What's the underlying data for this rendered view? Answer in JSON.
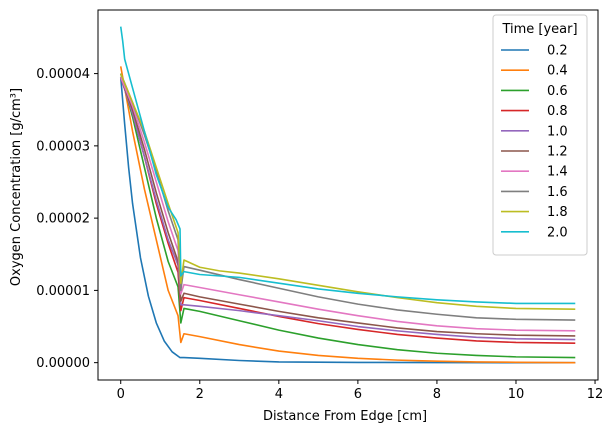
{
  "chart_data": {
    "type": "line",
    "title": "",
    "xlabel": "Distance From Edge [cm]",
    "ylabel": "Oxygen Concentration [g/cm³]",
    "xlim": [
      -0.575,
      12.075
    ],
    "ylim": [
      -2.4e-06,
      4.88e-05
    ],
    "x_ticks": [
      0,
      2,
      4,
      6,
      8,
      10,
      12
    ],
    "x_tick_labels": [
      "0",
      "2",
      "4",
      "6",
      "8",
      "10",
      "12"
    ],
    "y_ticks": [
      0,
      1e-05,
      2e-05,
      3e-05,
      4e-05
    ],
    "y_tick_labels": [
      "0.00000",
      "0.00001",
      "0.00002",
      "0.00003",
      "0.00004"
    ],
    "grid": false,
    "legend": {
      "title": "Time [year]",
      "placement": "top-right"
    },
    "series": [
      {
        "name": "0.2",
        "color": "#1f77b4",
        "x": [
          0,
          0.1,
          0.2,
          0.3,
          0.5,
          0.7,
          0.9,
          1.1,
          1.3,
          1.5,
          1.6,
          2.0,
          3.0,
          4.0,
          6.0,
          8.0,
          10.0,
          11.5
        ],
        "y": [
          3.95e-05,
          3.3e-05,
          2.7e-05,
          2.2e-05,
          1.45e-05,
          9.2e-06,
          5.5e-06,
          3e-06,
          1.5e-06,
          7e-07,
          7e-07,
          6e-07,
          3e-07,
          1e-07,
          3e-08,
          1e-08,
          0.0,
          0.0
        ]
      },
      {
        "name": "0.4",
        "color": "#ff7f0e",
        "x": [
          0,
          0.3,
          0.6,
          0.9,
          1.2,
          1.45,
          1.52,
          1.6,
          2.0,
          3.0,
          4.0,
          5.0,
          6.0,
          7.0,
          8.0,
          9.0,
          10.0,
          11.5
        ],
        "y": [
          4.1e-05,
          3.2e-05,
          2.4e-05,
          1.7e-05,
          1e-05,
          6.5e-06,
          2.8e-06,
          4e-06,
          3.6e-06,
          2.5e-06,
          1.6e-06,
          1e-06,
          6e-07,
          3.5e-07,
          2e-07,
          1e-07,
          5e-08,
          0.0
        ]
      },
      {
        "name": "0.6",
        "color": "#2ca02c",
        "x": [
          0,
          0.3,
          0.6,
          0.9,
          1.2,
          1.45,
          1.52,
          1.6,
          2.0,
          3.0,
          4.0,
          5.0,
          6.0,
          7.0,
          8.0,
          9.0,
          10.0,
          11.5
        ],
        "y": [
          4e-05,
          3.4e-05,
          2.7e-05,
          2e-05,
          1.4e-05,
          1.05e-05,
          5.5e-06,
          7.5e-06,
          7.1e-06,
          5.8e-06,
          4.5e-06,
          3.4e-06,
          2.5e-06,
          1.8e-06,
          1.3e-06,
          1e-06,
          8e-07,
          7e-07
        ]
      },
      {
        "name": "0.8",
        "color": "#d62728",
        "x": [
          0,
          0.3,
          0.6,
          0.9,
          1.2,
          1.45,
          1.52,
          1.6,
          2.0,
          3.0,
          4.0,
          5.0,
          6.0,
          7.0,
          8.0,
          9.0,
          10.0,
          11.5
        ],
        "y": [
          3.95e-05,
          3.45e-05,
          2.85e-05,
          2.2e-05,
          1.65e-05,
          1.25e-05,
          7.2e-06,
          9e-06,
          8.6e-06,
          7.5e-06,
          6.4e-06,
          5.4e-06,
          4.6e-06,
          3.9e-06,
          3.4e-06,
          3e-06,
          2.8e-06,
          2.7e-06
        ]
      },
      {
        "name": "1.0",
        "color": "#9467bd",
        "x": [
          0,
          0.3,
          0.6,
          0.9,
          1.2,
          1.45,
          1.52,
          1.6,
          2.0,
          3.0,
          4.0,
          5.0,
          6.0,
          7.0,
          8.0,
          9.0,
          10.0,
          11.5
        ],
        "y": [
          3.95e-05,
          3.45e-05,
          2.85e-05,
          2.25e-05,
          1.7e-05,
          1.35e-05,
          8e-06,
          8e-06,
          7.8e-06,
          7.2e-06,
          6.5e-06,
          5.8e-06,
          5e-06,
          4.4e-06,
          3.9e-06,
          3.5e-06,
          3.3e-06,
          3.2e-06
        ]
      },
      {
        "name": "1.2",
        "color": "#8c564b",
        "x": [
          0,
          0.3,
          0.6,
          0.9,
          1.2,
          1.45,
          1.52,
          1.6,
          2.0,
          3.0,
          4.0,
          5.0,
          6.0,
          7.0,
          8.0,
          9.0,
          10.0,
          11.5
        ],
        "y": [
          3.95e-05,
          3.5e-05,
          2.95e-05,
          2.35e-05,
          1.8e-05,
          1.4e-05,
          8.5e-06,
          9.6e-06,
          9.1e-06,
          8.1e-06,
          7.1e-06,
          6.2e-06,
          5.5e-06,
          4.8e-06,
          4.3e-06,
          4e-06,
          3.8e-06,
          3.7e-06
        ]
      },
      {
        "name": "1.4",
        "color": "#e377c2",
        "x": [
          0,
          0.3,
          0.6,
          0.9,
          1.2,
          1.45,
          1.52,
          1.6,
          2.0,
          3.0,
          4.0,
          5.0,
          6.0,
          7.0,
          8.0,
          9.0,
          10.0,
          11.5
        ],
        "y": [
          3.95e-05,
          3.55e-05,
          3.05e-05,
          2.5e-05,
          1.95e-05,
          1.55e-05,
          9.5e-06,
          1.08e-05,
          1.04e-05,
          9.4e-06,
          8.4e-06,
          7.4e-06,
          6.5e-06,
          5.7e-06,
          5.1e-06,
          4.7e-06,
          4.5e-06,
          4.4e-06
        ]
      },
      {
        "name": "1.6",
        "color": "#7f7f7f",
        "x": [
          0,
          0.3,
          0.6,
          0.9,
          1.2,
          1.45,
          1.52,
          1.6,
          2.0,
          3.0,
          4.0,
          5.0,
          6.0,
          7.0,
          8.0,
          9.0,
          10.0,
          11.5
        ],
        "y": [
          4e-05,
          3.6e-05,
          3.15e-05,
          2.65e-05,
          2.1e-05,
          1.7e-05,
          1e-05,
          1.33e-05,
          1.28e-05,
          1.15e-05,
          1.03e-05,
          9.1e-06,
          8.1e-06,
          7.3e-06,
          6.7e-06,
          6.2e-06,
          6e-06,
          5.9e-06
        ]
      },
      {
        "name": "1.8",
        "color": "#bcbd22",
        "x": [
          0,
          0.3,
          0.6,
          0.9,
          1.2,
          1.45,
          1.52,
          1.6,
          2.0,
          2.5,
          3.0,
          4.0,
          5.0,
          6.0,
          7.0,
          8.0,
          9.0,
          10.0,
          11.5
        ],
        "y": [
          4e-05,
          3.6e-05,
          3.2e-05,
          2.7e-05,
          2.2e-05,
          1.8e-05,
          1.1e-05,
          1.42e-05,
          1.32e-05,
          1.27e-05,
          1.24e-05,
          1.16e-05,
          1.07e-05,
          9.8e-06,
          9e-06,
          8.3e-06,
          7.8e-06,
          7.5e-06,
          7.4e-06
        ]
      },
      {
        "name": "2.0",
        "color": "#17becf",
        "x": [
          0,
          0.05,
          0.1,
          0.3,
          0.6,
          0.9,
          1.2,
          1.4,
          1.5,
          1.52,
          1.6,
          2.0,
          3.0,
          4.0,
          5.0,
          6.0,
          7.0,
          8.0,
          9.0,
          10.0,
          11.5
        ],
        "y": [
          4.65e-05,
          4.45e-05,
          4.2e-05,
          3.8e-05,
          3.2e-05,
          2.6e-05,
          2.15e-05,
          1.98e-05,
          1.85e-05,
          1.2e-05,
          1.26e-05,
          1.22e-05,
          1.18e-05,
          1.1e-05,
          1.02e-05,
          9.6e-06,
          9.1e-06,
          8.7e-06,
          8.4e-06,
          8.2e-06,
          8.2e-06
        ]
      }
    ]
  }
}
